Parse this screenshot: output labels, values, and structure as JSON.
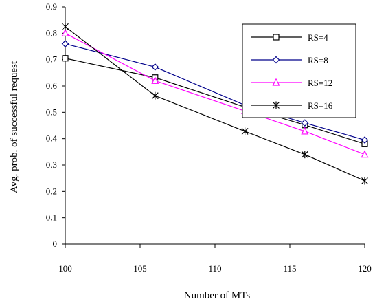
{
  "chart_data": {
    "type": "line",
    "xlabel": "Number of MTs",
    "ylabel": "Avg. prob. of successful request",
    "xlim": [
      100,
      120
    ],
    "ylim": [
      0,
      0.9
    ],
    "xticks": [
      100,
      105,
      110,
      115,
      120
    ],
    "yticks": [
      0,
      0.1,
      0.2,
      0.3,
      0.4,
      0.5,
      0.6,
      0.7,
      0.8,
      0.9
    ],
    "grid": false,
    "legend_position": "top-right",
    "series": [
      {
        "name": "RS=4",
        "color": "#000000",
        "marker": "square",
        "x": [
          100,
          106,
          112,
          116,
          120
        ],
        "y": [
          0.705,
          0.632,
          0.52,
          0.452,
          0.38
        ]
      },
      {
        "name": "RS=8",
        "color": "#00008b",
        "marker": "diamond",
        "x": [
          100,
          106,
          112,
          116,
          120
        ],
        "y": [
          0.76,
          0.672,
          0.527,
          0.46,
          0.395
        ]
      },
      {
        "name": "RS=12",
        "color": "#ff00ff",
        "marker": "triangle",
        "x": [
          100,
          106,
          112,
          116,
          120
        ],
        "y": [
          0.8,
          0.62,
          0.505,
          0.428,
          0.34
        ]
      },
      {
        "name": "RS=16",
        "color": "#000000",
        "marker": "asterisk",
        "x": [
          100,
          106,
          112,
          116,
          120
        ],
        "y": [
          0.825,
          0.563,
          0.428,
          0.34,
          0.24
        ]
      }
    ]
  }
}
